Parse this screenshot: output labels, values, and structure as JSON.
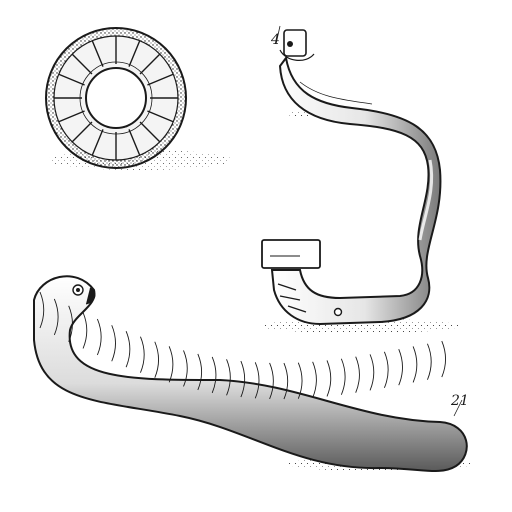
{
  "figure": {
    "labels": {
      "upper": "4",
      "lower": "21"
    },
    "colors": {
      "ink": "#1a1a1a",
      "paper": "#ffffff",
      "shade": "#9a9a9a"
    },
    "items": [
      {
        "name": "coiled-ring-segment"
      },
      {
        "name": "curved-worm-tube"
      },
      {
        "name": "segmented-worm"
      }
    ]
  }
}
